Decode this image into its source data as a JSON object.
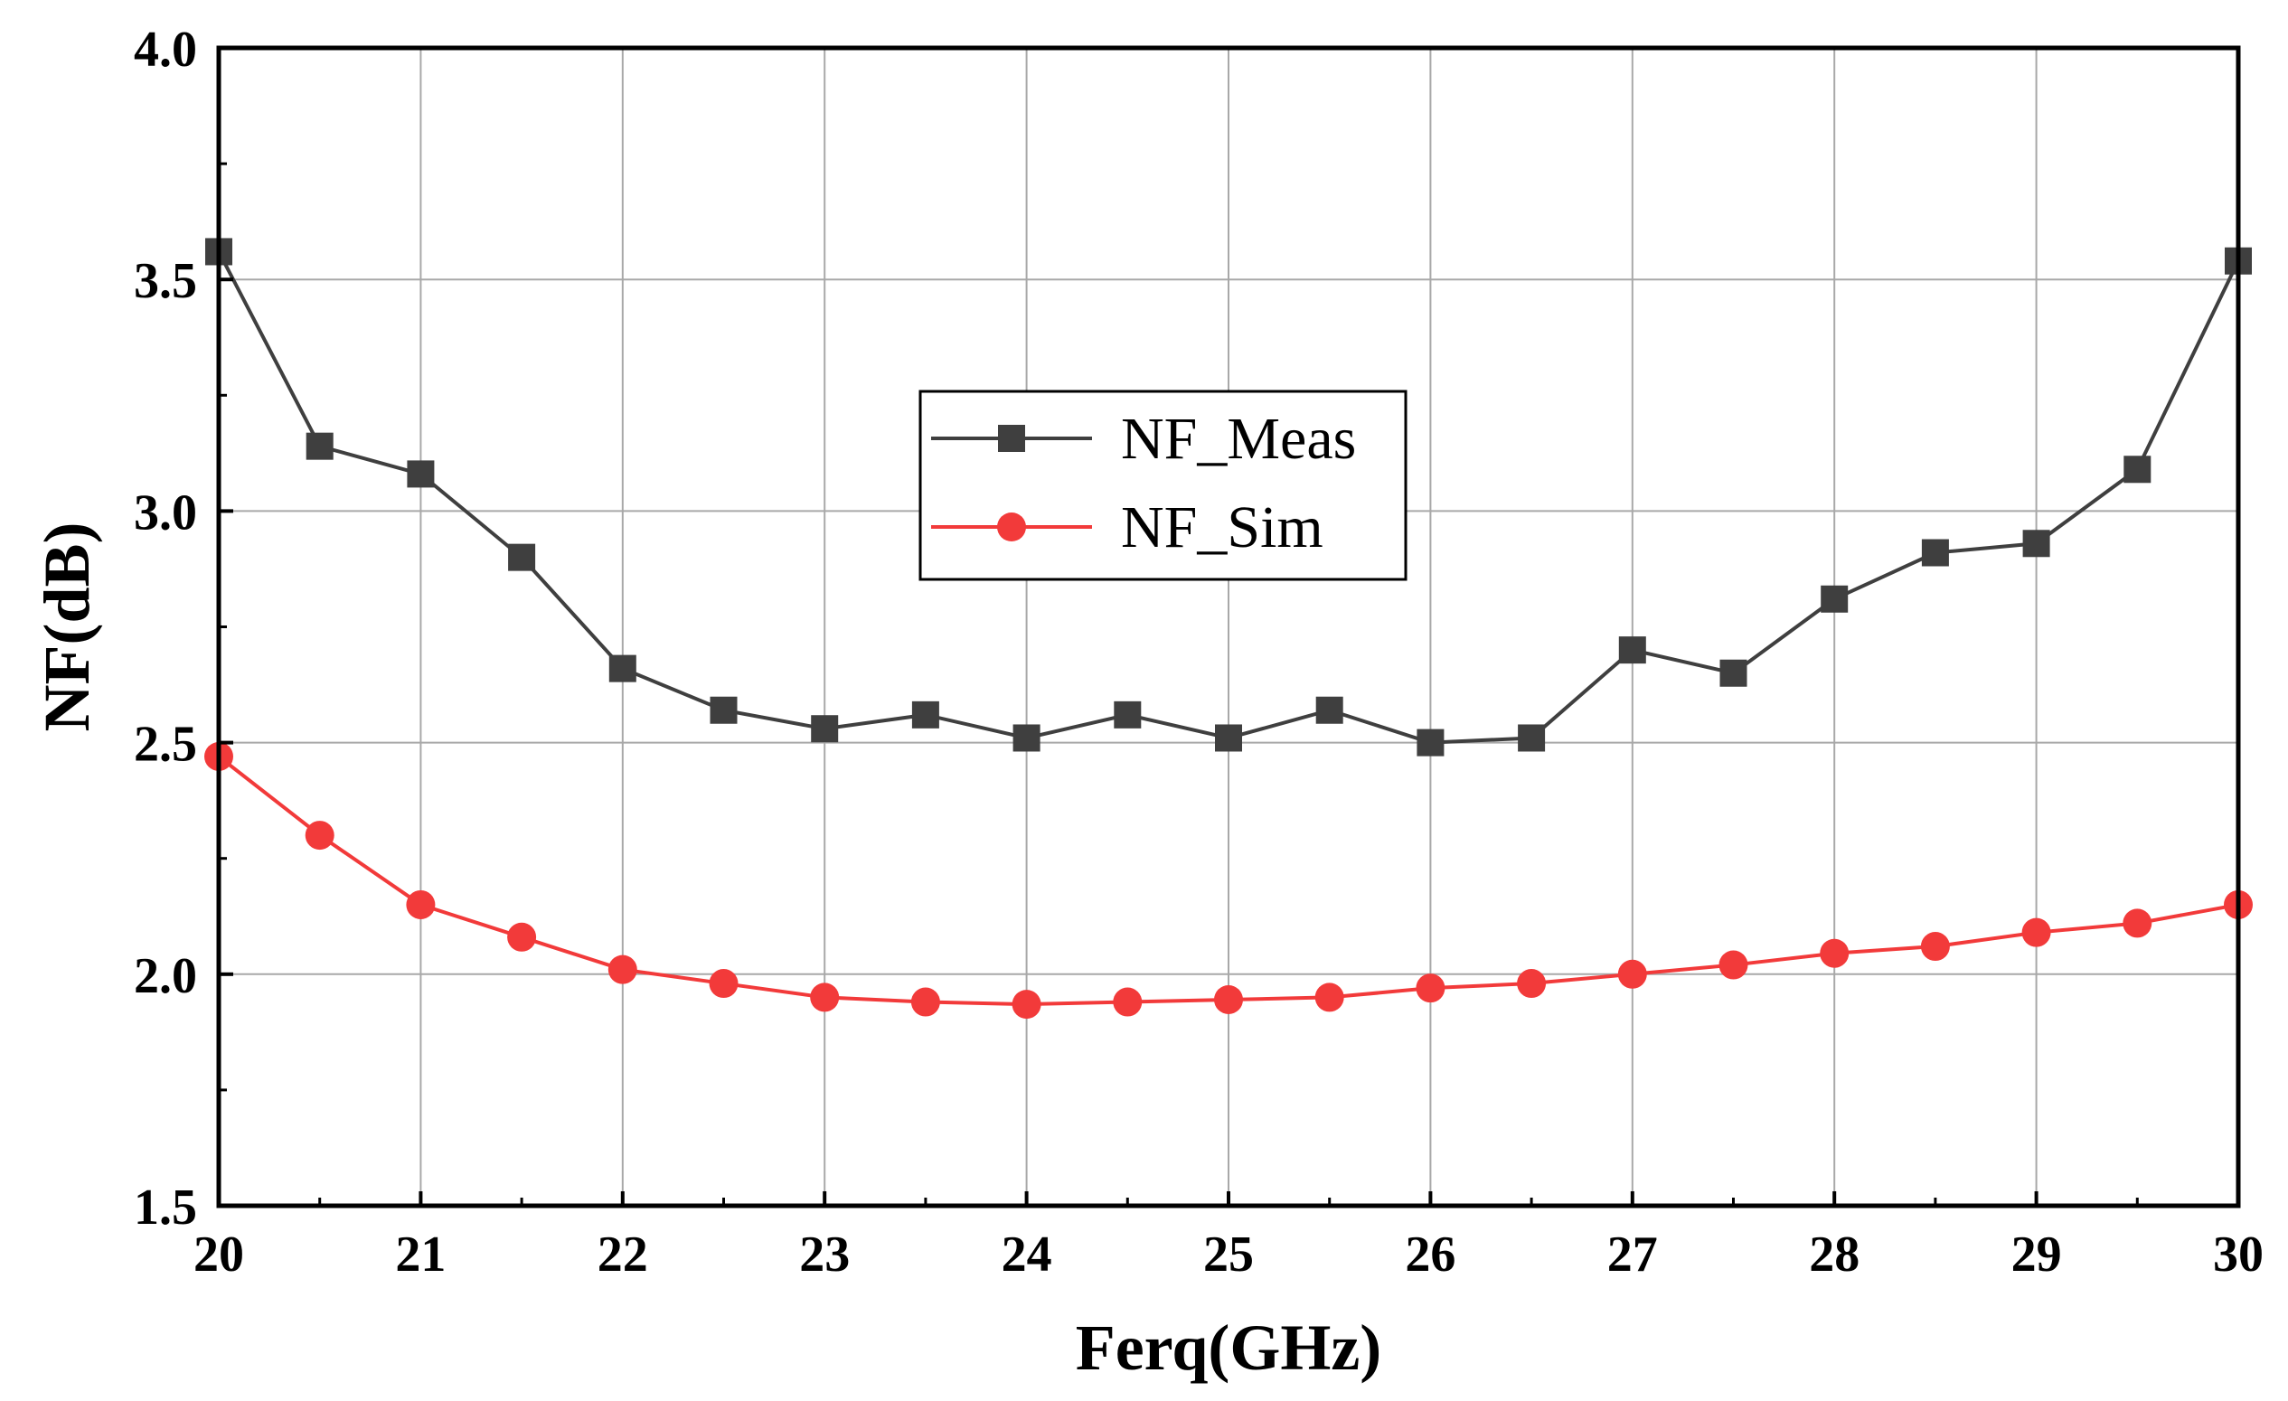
{
  "chart_data": {
    "type": "line",
    "title": "",
    "xlabel": "Ferq(GHz)",
    "ylabel": "NF(dB)",
    "xlim": [
      20,
      30
    ],
    "ylim": [
      1.5,
      4.0
    ],
    "xticks": [
      20,
      21,
      22,
      23,
      24,
      25,
      26,
      27,
      28,
      29,
      30
    ],
    "yticks": [
      1.5,
      2.0,
      2.5,
      3.0,
      3.5,
      4.0
    ],
    "xtick_labels": [
      "20",
      "21",
      "22",
      "23",
      "24",
      "25",
      "26",
      "27",
      "28",
      "29",
      "30"
    ],
    "ytick_labels": [
      "1.5",
      "2.0",
      "2.5",
      "3.0",
      "3.5",
      "4.0"
    ],
    "grid": true,
    "legend_position": "center",
    "x": [
      20,
      20.5,
      21,
      21.5,
      22,
      22.5,
      23,
      23.5,
      24,
      24.5,
      25,
      25.5,
      26,
      26.5,
      27,
      27.5,
      28,
      28.5,
      29,
      29.5,
      30
    ],
    "series": [
      {
        "name": "NF_Meas",
        "color": "#3f3f3f",
        "marker": "square",
        "values": [
          3.56,
          3.14,
          3.08,
          2.9,
          2.66,
          2.57,
          2.53,
          2.56,
          2.51,
          2.56,
          2.51,
          2.57,
          2.5,
          2.51,
          2.7,
          2.65,
          2.81,
          2.91,
          2.93,
          3.09,
          3.54
        ]
      },
      {
        "name": "NF_Sim",
        "color": "#f23a3a",
        "marker": "circle",
        "values": [
          2.47,
          2.3,
          2.15,
          2.08,
          2.01,
          1.98,
          1.95,
          1.94,
          1.935,
          1.94,
          1.945,
          1.95,
          1.97,
          1.98,
          2.0,
          2.02,
          2.045,
          2.06,
          2.09,
          2.11,
          2.15
        ]
      }
    ]
  }
}
